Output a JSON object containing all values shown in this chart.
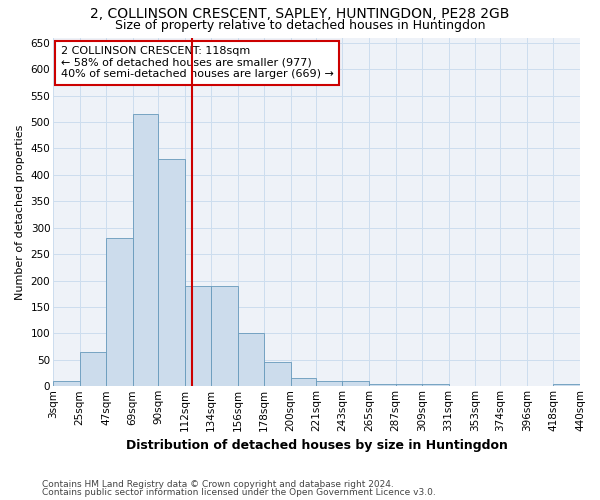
{
  "title": "2, COLLINSON CRESCENT, SAPLEY, HUNTINGDON, PE28 2GB",
  "subtitle": "Size of property relative to detached houses in Huntingdon",
  "xlabel": "Distribution of detached houses by size in Huntingdon",
  "ylabel": "Number of detached properties",
  "footnote1": "Contains HM Land Registry data © Crown copyright and database right 2024.",
  "footnote2": "Contains public sector information licensed under the Open Government Licence v3.0.",
  "annotation_line1": "2 COLLINSON CRESCENT: 118sqm",
  "annotation_line2": "← 58% of detached houses are smaller (977)",
  "annotation_line3": "40% of semi-detached houses are larger (669) →",
  "bin_edges": [
    3,
    25,
    47,
    69,
    90,
    112,
    134,
    156,
    178,
    200,
    221,
    243,
    265,
    287,
    309,
    331,
    353,
    374,
    396,
    418,
    440
  ],
  "bin_labels": [
    "3sqm",
    "25sqm",
    "47sqm",
    "69sqm",
    "90sqm",
    "112sqm",
    "134sqm",
    "156sqm",
    "178sqm",
    "200sqm",
    "221sqm",
    "243sqm",
    "265sqm",
    "287sqm",
    "309sqm",
    "331sqm",
    "353sqm",
    "374sqm",
    "396sqm",
    "418sqm",
    "440sqm"
  ],
  "bar_heights": [
    10,
    65,
    280,
    515,
    430,
    190,
    190,
    100,
    45,
    15,
    10,
    10,
    5,
    5,
    5,
    0,
    0,
    0,
    0,
    5
  ],
  "bar_color": "#ccdcec",
  "bar_edge_color": "#6699bb",
  "vline_color": "#cc0000",
  "vline_x": 118,
  "ylim": [
    0,
    660
  ],
  "yticks": [
    0,
    50,
    100,
    150,
    200,
    250,
    300,
    350,
    400,
    450,
    500,
    550,
    600,
    650
  ],
  "grid_color": "#ccddee",
  "background_color": "#eef2f8",
  "annotation_box_facecolor": "#ffffff",
  "annotation_box_edgecolor": "#cc0000",
  "title_fontsize": 10,
  "subtitle_fontsize": 9,
  "xlabel_fontsize": 9,
  "ylabel_fontsize": 8,
  "tick_fontsize": 7.5,
  "annotation_fontsize": 8,
  "footnote_fontsize": 6.5
}
